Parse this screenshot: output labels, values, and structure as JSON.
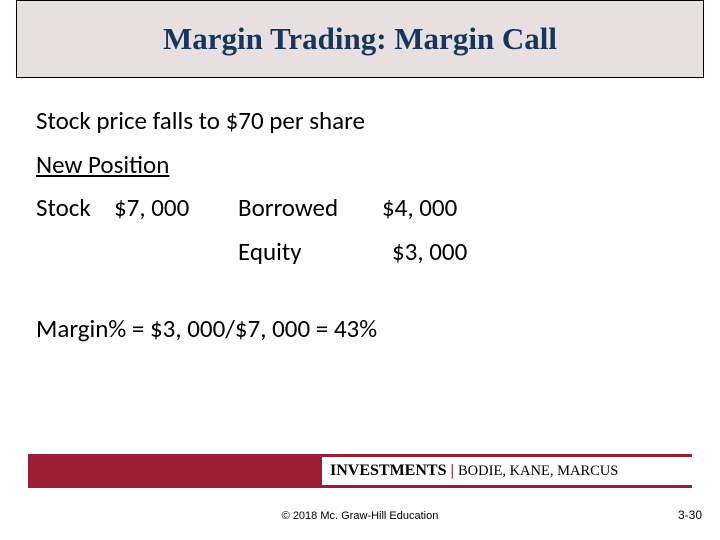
{
  "title": "Margin Trading: Margin Call",
  "body": {
    "line1": "Stock price falls to $70 per share",
    "line2": "New Position",
    "row3": {
      "stock_label": "Stock",
      "stock_value": "$7, 000",
      "borrowed_label": "Borrowed",
      "borrowed_value": "$4, 000"
    },
    "row4": {
      "equity_label": "Equity",
      "equity_value": "$3, 000"
    },
    "line5": "Margin% = $3, 000/$7, 000 = 43%"
  },
  "footer": {
    "book": "INVESTMENTS",
    "separator": "|",
    "authors": "BODIE, KANE, MARCUS",
    "copyright": "© 2018 Mc. Graw-Hill Education",
    "pagenum": "3-30"
  },
  "colors": {
    "title_bg": "#e8e0e0",
    "title_text": "#17365d",
    "band": "#9a1d33"
  }
}
